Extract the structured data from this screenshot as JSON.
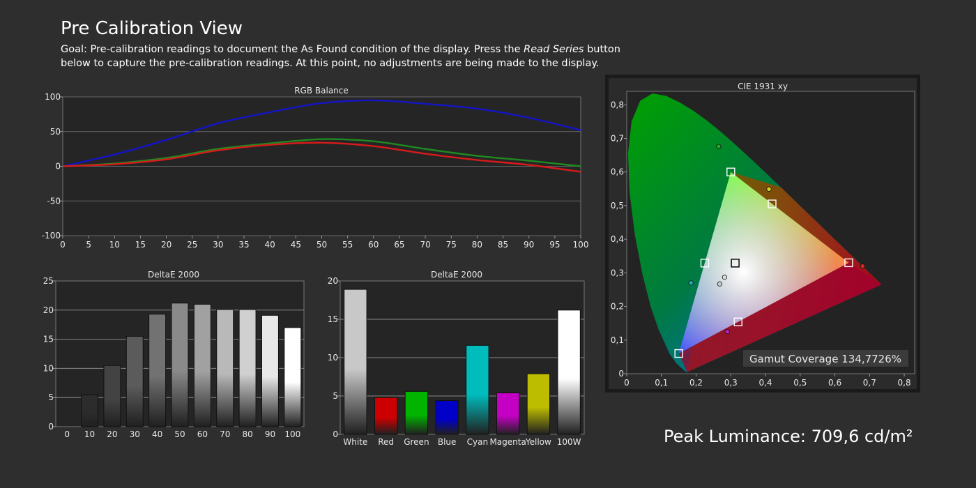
{
  "header": {
    "title": "Pre Calibration View",
    "goal_prefix": "Goal: Pre-calibration readings to document the As Found condition of the display. Press the",
    "goal_emphasis": "Read Series",
    "goal_suffix": "button below to capture the pre-calibration readings. At this point, no adjustments are being made to the display."
  },
  "peak": {
    "label": "Peak Luminance:",
    "value": "709,6 cd/m²"
  },
  "chart_data": [
    {
      "type": "line",
      "title": "RGB Balance",
      "x": [
        0,
        10,
        20,
        30,
        40,
        50,
        60,
        70,
        80,
        90,
        100
      ],
      "xticks": [
        "0",
        "5",
        "10",
        "15",
        "20",
        "25",
        "30",
        "35",
        "40",
        "45",
        "50",
        "55",
        "60",
        "65",
        "70",
        "75",
        "80",
        "85",
        "90",
        "95",
        "100"
      ],
      "yticks": [
        "100",
        "50",
        "0",
        "-50",
        "-100"
      ],
      "xlim": [
        0,
        100
      ],
      "ylim": [
        -100,
        100
      ],
      "grid": true,
      "series": [
        {
          "color": "#1414c8",
          "values": [
            0,
            17,
            38,
            62,
            78,
            91,
            95,
            90,
            83,
            70,
            52
          ]
        },
        {
          "color": "#1f8a1f",
          "values": [
            0,
            4,
            12,
            25,
            33,
            39,
            36,
            25,
            15,
            8,
            0
          ]
        },
        {
          "color": "#d81a1a",
          "values": [
            0,
            3,
            10,
            23,
            31,
            34,
            29,
            18,
            9,
            2,
            -8
          ]
        }
      ]
    },
    {
      "type": "bar",
      "title": "DeltaE 2000",
      "categories": [
        "0",
        "10",
        "20",
        "30",
        "40",
        "50",
        "60",
        "70",
        "80",
        "90",
        "100"
      ],
      "values": [
        0,
        5.5,
        10.5,
        15.5,
        19.3,
        21.2,
        21.0,
        20.1,
        20.1,
        19.1,
        17.0
      ],
      "yticks": [
        "25",
        "20",
        "15",
        "10",
        "5",
        "0"
      ],
      "ylim": [
        0,
        25
      ],
      "grid": true
    },
    {
      "type": "bar",
      "title": "DeltaE 2000",
      "categories": [
        "White",
        "Red",
        "Green",
        "Blue",
        "Cyan",
        "Magenta",
        "Yellow",
        "100W"
      ],
      "values": [
        18.9,
        4.8,
        5.6,
        4.4,
        11.6,
        5.4,
        7.9,
        16.2
      ],
      "colors": [
        "#c8c8c8",
        "#cc0000",
        "#00b400",
        "#0000c8",
        "#00bcbc",
        "#c400c4",
        "#bcbc00",
        "#ffffff"
      ],
      "yticks": [
        "20",
        "15",
        "10",
        "5",
        "0"
      ],
      "ylim": [
        0,
        20
      ],
      "grid": true
    },
    {
      "type": "scatter",
      "title": "CIE 1931 xy",
      "xticks": [
        "0",
        "0,1",
        "0,2",
        "0,3",
        "0,4",
        "0,5",
        "0,6",
        "0,7",
        "0,8"
      ],
      "yticks": [
        "0,8",
        "0,7",
        "0,6",
        "0,5",
        "0,4",
        "0,3",
        "0,2",
        "0,1",
        "0"
      ],
      "xlim": [
        0,
        0.83
      ],
      "ylim": [
        0,
        0.84
      ],
      "targets": [
        [
          0.64,
          0.33
        ],
        [
          0.3,
          0.6
        ],
        [
          0.15,
          0.06
        ],
        [
          0.225,
          0.329
        ],
        [
          0.3127,
          0.329
        ],
        [
          0.321,
          0.154
        ],
        [
          0.419,
          0.505
        ]
      ],
      "measured": [
        {
          "x": 0.68,
          "y": 0.32,
          "color": "#cc2a2a"
        },
        {
          "x": 0.265,
          "y": 0.676,
          "color": "#22aa22"
        },
        {
          "x": 0.185,
          "y": 0.27,
          "color": "#20b0b0"
        },
        {
          "x": 0.29,
          "y": 0.125,
          "color": "#bb22bb"
        },
        {
          "x": 0.41,
          "y": 0.549,
          "color": "#d4d422"
        },
        {
          "x": 0.282,
          "y": 0.287,
          "color": "#dddddd"
        },
        {
          "x": 0.268,
          "y": 0.267,
          "color": "#cccccc"
        }
      ],
      "annotation": "Gamut Coverage 134,7726%"
    }
  ]
}
